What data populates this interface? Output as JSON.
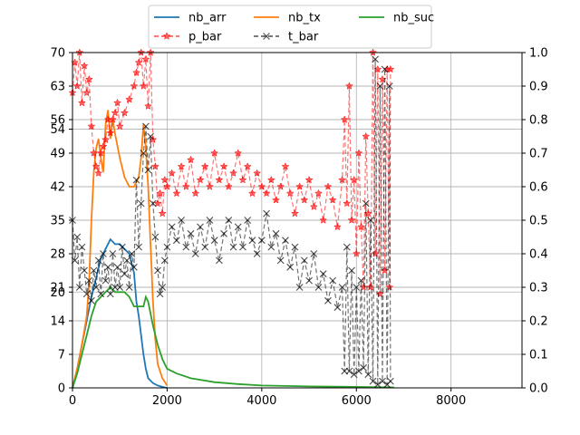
{
  "chart_data": {
    "type": "line",
    "title": "",
    "xlabel": "",
    "ylabel": "",
    "xlim": [
      0,
      9500
    ],
    "ylim_left": [
      0,
      70
    ],
    "ylim_right": [
      0,
      1.0
    ],
    "x_ticks": [
      0,
      2000,
      4000,
      6000,
      8000
    ],
    "y_ticks_left": [
      0,
      7,
      14,
      20,
      21,
      28,
      35,
      42,
      49,
      54,
      56,
      63,
      70
    ],
    "y_ticks_right": [
      0.0,
      0.1,
      0.2,
      0.3,
      0.4,
      0.5,
      0.6,
      0.7,
      0.8,
      0.9,
      1.0
    ],
    "grid": true,
    "legend": {
      "placement": "top-center",
      "columns": 3
    },
    "series": [
      {
        "name": "nb_arr",
        "axis": "left",
        "color": "#1f77b4",
        "style": "solid",
        "marker": "",
        "points": [
          [
            0,
            0
          ],
          [
            100,
            4
          ],
          [
            200,
            9
          ],
          [
            300,
            14
          ],
          [
            400,
            19
          ],
          [
            500,
            23
          ],
          [
            600,
            27
          ],
          [
            700,
            29
          ],
          [
            800,
            31
          ],
          [
            900,
            30
          ],
          [
            1000,
            30
          ],
          [
            1100,
            29
          ],
          [
            1200,
            28
          ],
          [
            1300,
            24
          ],
          [
            1350,
            18
          ],
          [
            1400,
            15
          ],
          [
            1450,
            11
          ],
          [
            1500,
            7
          ],
          [
            1550,
            4
          ],
          [
            1600,
            2
          ],
          [
            1700,
            1
          ],
          [
            1800,
            0.5
          ],
          [
            1900,
            0.2
          ],
          [
            2000,
            0
          ]
        ]
      },
      {
        "name": "nb_tx",
        "axis": "left",
        "color": "#ff7f0e",
        "style": "solid",
        "marker": "",
        "points": [
          [
            0,
            0
          ],
          [
            100,
            4
          ],
          [
            200,
            9
          ],
          [
            300,
            15
          ],
          [
            350,
            22
          ],
          [
            400,
            35
          ],
          [
            450,
            45
          ],
          [
            500,
            50
          ],
          [
            550,
            52
          ],
          [
            600,
            48
          ],
          [
            650,
            45
          ],
          [
            700,
            55
          ],
          [
            750,
            58
          ],
          [
            800,
            52
          ],
          [
            850,
            56
          ],
          [
            900,
            53
          ],
          [
            1000,
            48
          ],
          [
            1100,
            44
          ],
          [
            1200,
            42
          ],
          [
            1300,
            42
          ],
          [
            1400,
            44
          ],
          [
            1450,
            48
          ],
          [
            1500,
            55
          ],
          [
            1550,
            50
          ],
          [
            1600,
            42
          ],
          [
            1650,
            30
          ],
          [
            1700,
            18
          ],
          [
            1750,
            10
          ],
          [
            1800,
            5
          ],
          [
            1900,
            2
          ],
          [
            2000,
            0.5
          ]
        ]
      },
      {
        "name": "nb_suc",
        "axis": "left",
        "color": "#2ca02c",
        "style": "solid",
        "marker": "",
        "points": [
          [
            0,
            0
          ],
          [
            100,
            3
          ],
          [
            200,
            7
          ],
          [
            300,
            11
          ],
          [
            400,
            15
          ],
          [
            500,
            18
          ],
          [
            600,
            19
          ],
          [
            700,
            20
          ],
          [
            800,
            21
          ],
          [
            900,
            20
          ],
          [
            1000,
            20
          ],
          [
            1100,
            20
          ],
          [
            1200,
            19
          ],
          [
            1300,
            17
          ],
          [
            1400,
            17
          ],
          [
            1500,
            17
          ],
          [
            1550,
            19
          ],
          [
            1600,
            18
          ],
          [
            1700,
            13
          ],
          [
            1800,
            9
          ],
          [
            1900,
            6
          ],
          [
            2000,
            4
          ],
          [
            2200,
            3
          ],
          [
            2500,
            2
          ],
          [
            3000,
            1.2
          ],
          [
            3500,
            0.8
          ],
          [
            4000,
            0.5
          ],
          [
            5000,
            0.3
          ],
          [
            6000,
            0.2
          ],
          [
            6800,
            0.1
          ]
        ]
      },
      {
        "name": "p_bar",
        "axis": "right",
        "color": "#ff0000",
        "style": "dashed",
        "marker": "star",
        "points": [
          [
            0,
            0.88
          ],
          [
            50,
            0.97
          ],
          [
            100,
            0.9
          ],
          [
            150,
            1.0
          ],
          [
            200,
            0.85
          ],
          [
            250,
            0.96
          ],
          [
            300,
            0.88
          ],
          [
            350,
            0.92
          ],
          [
            400,
            0.78
          ],
          [
            450,
            0.7
          ],
          [
            500,
            0.66
          ],
          [
            550,
            0.64
          ],
          [
            600,
            0.7
          ],
          [
            650,
            0.72
          ],
          [
            700,
            0.74
          ],
          [
            750,
            0.8
          ],
          [
            800,
            0.76
          ],
          [
            850,
            0.8
          ],
          [
            900,
            0.82
          ],
          [
            950,
            0.85
          ],
          [
            1000,
            0.78
          ],
          [
            1100,
            0.82
          ],
          [
            1200,
            0.86
          ],
          [
            1300,
            0.9
          ],
          [
            1350,
            0.94
          ],
          [
            1400,
            0.97
          ],
          [
            1450,
            1.0
          ],
          [
            1500,
            0.9
          ],
          [
            1550,
            0.98
          ],
          [
            1600,
            0.84
          ],
          [
            1650,
            1.0
          ],
          [
            1700,
            0.74
          ],
          [
            1750,
            0.66
          ],
          [
            1800,
            0.55
          ],
          [
            1850,
            0.58
          ],
          [
            1900,
            0.52
          ],
          [
            1950,
            0.62
          ],
          [
            2000,
            0.6
          ],
          [
            2100,
            0.64
          ],
          [
            2200,
            0.58
          ],
          [
            2300,
            0.66
          ],
          [
            2400,
            0.6
          ],
          [
            2500,
            0.68
          ],
          [
            2600,
            0.58
          ],
          [
            2700,
            0.62
          ],
          [
            2800,
            0.66
          ],
          [
            2900,
            0.6
          ],
          [
            3000,
            0.7
          ],
          [
            3100,
            0.62
          ],
          [
            3200,
            0.66
          ],
          [
            3300,
            0.6
          ],
          [
            3400,
            0.64
          ],
          [
            3500,
            0.7
          ],
          [
            3600,
            0.62
          ],
          [
            3700,
            0.66
          ],
          [
            3800,
            0.58
          ],
          [
            3900,
            0.64
          ],
          [
            4000,
            0.6
          ],
          [
            4100,
            0.58
          ],
          [
            4200,
            0.62
          ],
          [
            4300,
            0.56
          ],
          [
            4400,
            0.6
          ],
          [
            4500,
            0.66
          ],
          [
            4600,
            0.58
          ],
          [
            4700,
            0.52
          ],
          [
            4800,
            0.6
          ],
          [
            4900,
            0.56
          ],
          [
            5000,
            0.62
          ],
          [
            5100,
            0.54
          ],
          [
            5200,
            0.58
          ],
          [
            5300,
            0.5
          ],
          [
            5400,
            0.6
          ],
          [
            5500,
            0.56
          ],
          [
            5600,
            0.48
          ],
          [
            5700,
            0.62
          ],
          [
            5750,
            0.8
          ],
          [
            5800,
            0.55
          ],
          [
            5850,
            0.9
          ],
          [
            5900,
            0.5
          ],
          [
            5950,
            0.62
          ],
          [
            6000,
            0.4
          ],
          [
            6050,
            0.7
          ],
          [
            6100,
            0.48
          ],
          [
            6150,
            0.3
          ],
          [
            6200,
            0.75
          ],
          [
            6250,
            0.52
          ],
          [
            6300,
            0.3
          ],
          [
            6350,
            1.0
          ],
          [
            6400,
            0.4
          ],
          [
            6450,
            0.95
          ],
          [
            6500,
            0.28
          ],
          [
            6550,
            0.92
          ],
          [
            6600,
            0.35
          ],
          [
            6650,
            0.95
          ],
          [
            6700,
            0.3
          ],
          [
            6720,
            0.95
          ]
        ]
      },
      {
        "name": "t_bar",
        "axis": "right",
        "color": "#000000",
        "style": "dashed",
        "marker": "x",
        "points": [
          [
            0,
            0.5
          ],
          [
            50,
            0.38
          ],
          [
            100,
            0.45
          ],
          [
            150,
            0.3
          ],
          [
            200,
            0.42
          ],
          [
            250,
            0.35
          ],
          [
            300,
            0.28
          ],
          [
            350,
            0.32
          ],
          [
            400,
            0.26
          ],
          [
            450,
            0.35
          ],
          [
            500,
            0.3
          ],
          [
            550,
            0.38
          ],
          [
            600,
            0.28
          ],
          [
            650,
            0.4
          ],
          [
            700,
            0.32
          ],
          [
            750,
            0.36
          ],
          [
            800,
            0.28
          ],
          [
            850,
            0.4
          ],
          [
            900,
            0.3
          ],
          [
            950,
            0.36
          ],
          [
            1000,
            0.3
          ],
          [
            1050,
            0.42
          ],
          [
            1100,
            0.34
          ],
          [
            1150,
            0.38
          ],
          [
            1200,
            0.3
          ],
          [
            1250,
            0.4
          ],
          [
            1300,
            0.36
          ],
          [
            1350,
            0.62
          ],
          [
            1400,
            0.42
          ],
          [
            1450,
            0.55
          ],
          [
            1500,
            0.7
          ],
          [
            1550,
            0.78
          ],
          [
            1600,
            0.65
          ],
          [
            1650,
            0.75
          ],
          [
            1700,
            0.55
          ],
          [
            1750,
            0.45
          ],
          [
            1800,
            0.35
          ],
          [
            1850,
            0.28
          ],
          [
            1900,
            0.3
          ],
          [
            1950,
            0.38
          ],
          [
            2000,
            0.42
          ],
          [
            2100,
            0.48
          ],
          [
            2200,
            0.44
          ],
          [
            2300,
            0.5
          ],
          [
            2400,
            0.42
          ],
          [
            2500,
            0.46
          ],
          [
            2600,
            0.4
          ],
          [
            2700,
            0.48
          ],
          [
            2800,
            0.42
          ],
          [
            2900,
            0.5
          ],
          [
            3000,
            0.44
          ],
          [
            3100,
            0.38
          ],
          [
            3200,
            0.46
          ],
          [
            3300,
            0.5
          ],
          [
            3400,
            0.42
          ],
          [
            3500,
            0.48
          ],
          [
            3600,
            0.42
          ],
          [
            3700,
            0.5
          ],
          [
            3800,
            0.44
          ],
          [
            3900,
            0.4
          ],
          [
            4000,
            0.44
          ],
          [
            4100,
            0.52
          ],
          [
            4200,
            0.42
          ],
          [
            4300,
            0.46
          ],
          [
            4400,
            0.38
          ],
          [
            4500,
            0.44
          ],
          [
            4600,
            0.36
          ],
          [
            4700,
            0.42
          ],
          [
            4800,
            0.3
          ],
          [
            4900,
            0.38
          ],
          [
            5000,
            0.32
          ],
          [
            5100,
            0.4
          ],
          [
            5200,
            0.3
          ],
          [
            5300,
            0.34
          ],
          [
            5400,
            0.26
          ],
          [
            5500,
            0.32
          ],
          [
            5600,
            0.24
          ],
          [
            5700,
            0.3
          ],
          [
            5750,
            0.05
          ],
          [
            5800,
            0.42
          ],
          [
            5850,
            0.05
          ],
          [
            5900,
            0.35
          ],
          [
            5950,
            0.04
          ],
          [
            6000,
            0.3
          ],
          [
            6050,
            0.05
          ],
          [
            6100,
            0.32
          ],
          [
            6150,
            0.06
          ],
          [
            6200,
            0.55
          ],
          [
            6250,
            0.04
          ],
          [
            6300,
            0.5
          ],
          [
            6350,
            0.02
          ],
          [
            6400,
            0.98
          ],
          [
            6450,
            0.01
          ],
          [
            6500,
            0.9
          ],
          [
            6550,
            0.02
          ],
          [
            6600,
            0.95
          ],
          [
            6650,
            0.01
          ],
          [
            6700,
            0.9
          ],
          [
            6720,
            0.02
          ]
        ]
      }
    ]
  }
}
